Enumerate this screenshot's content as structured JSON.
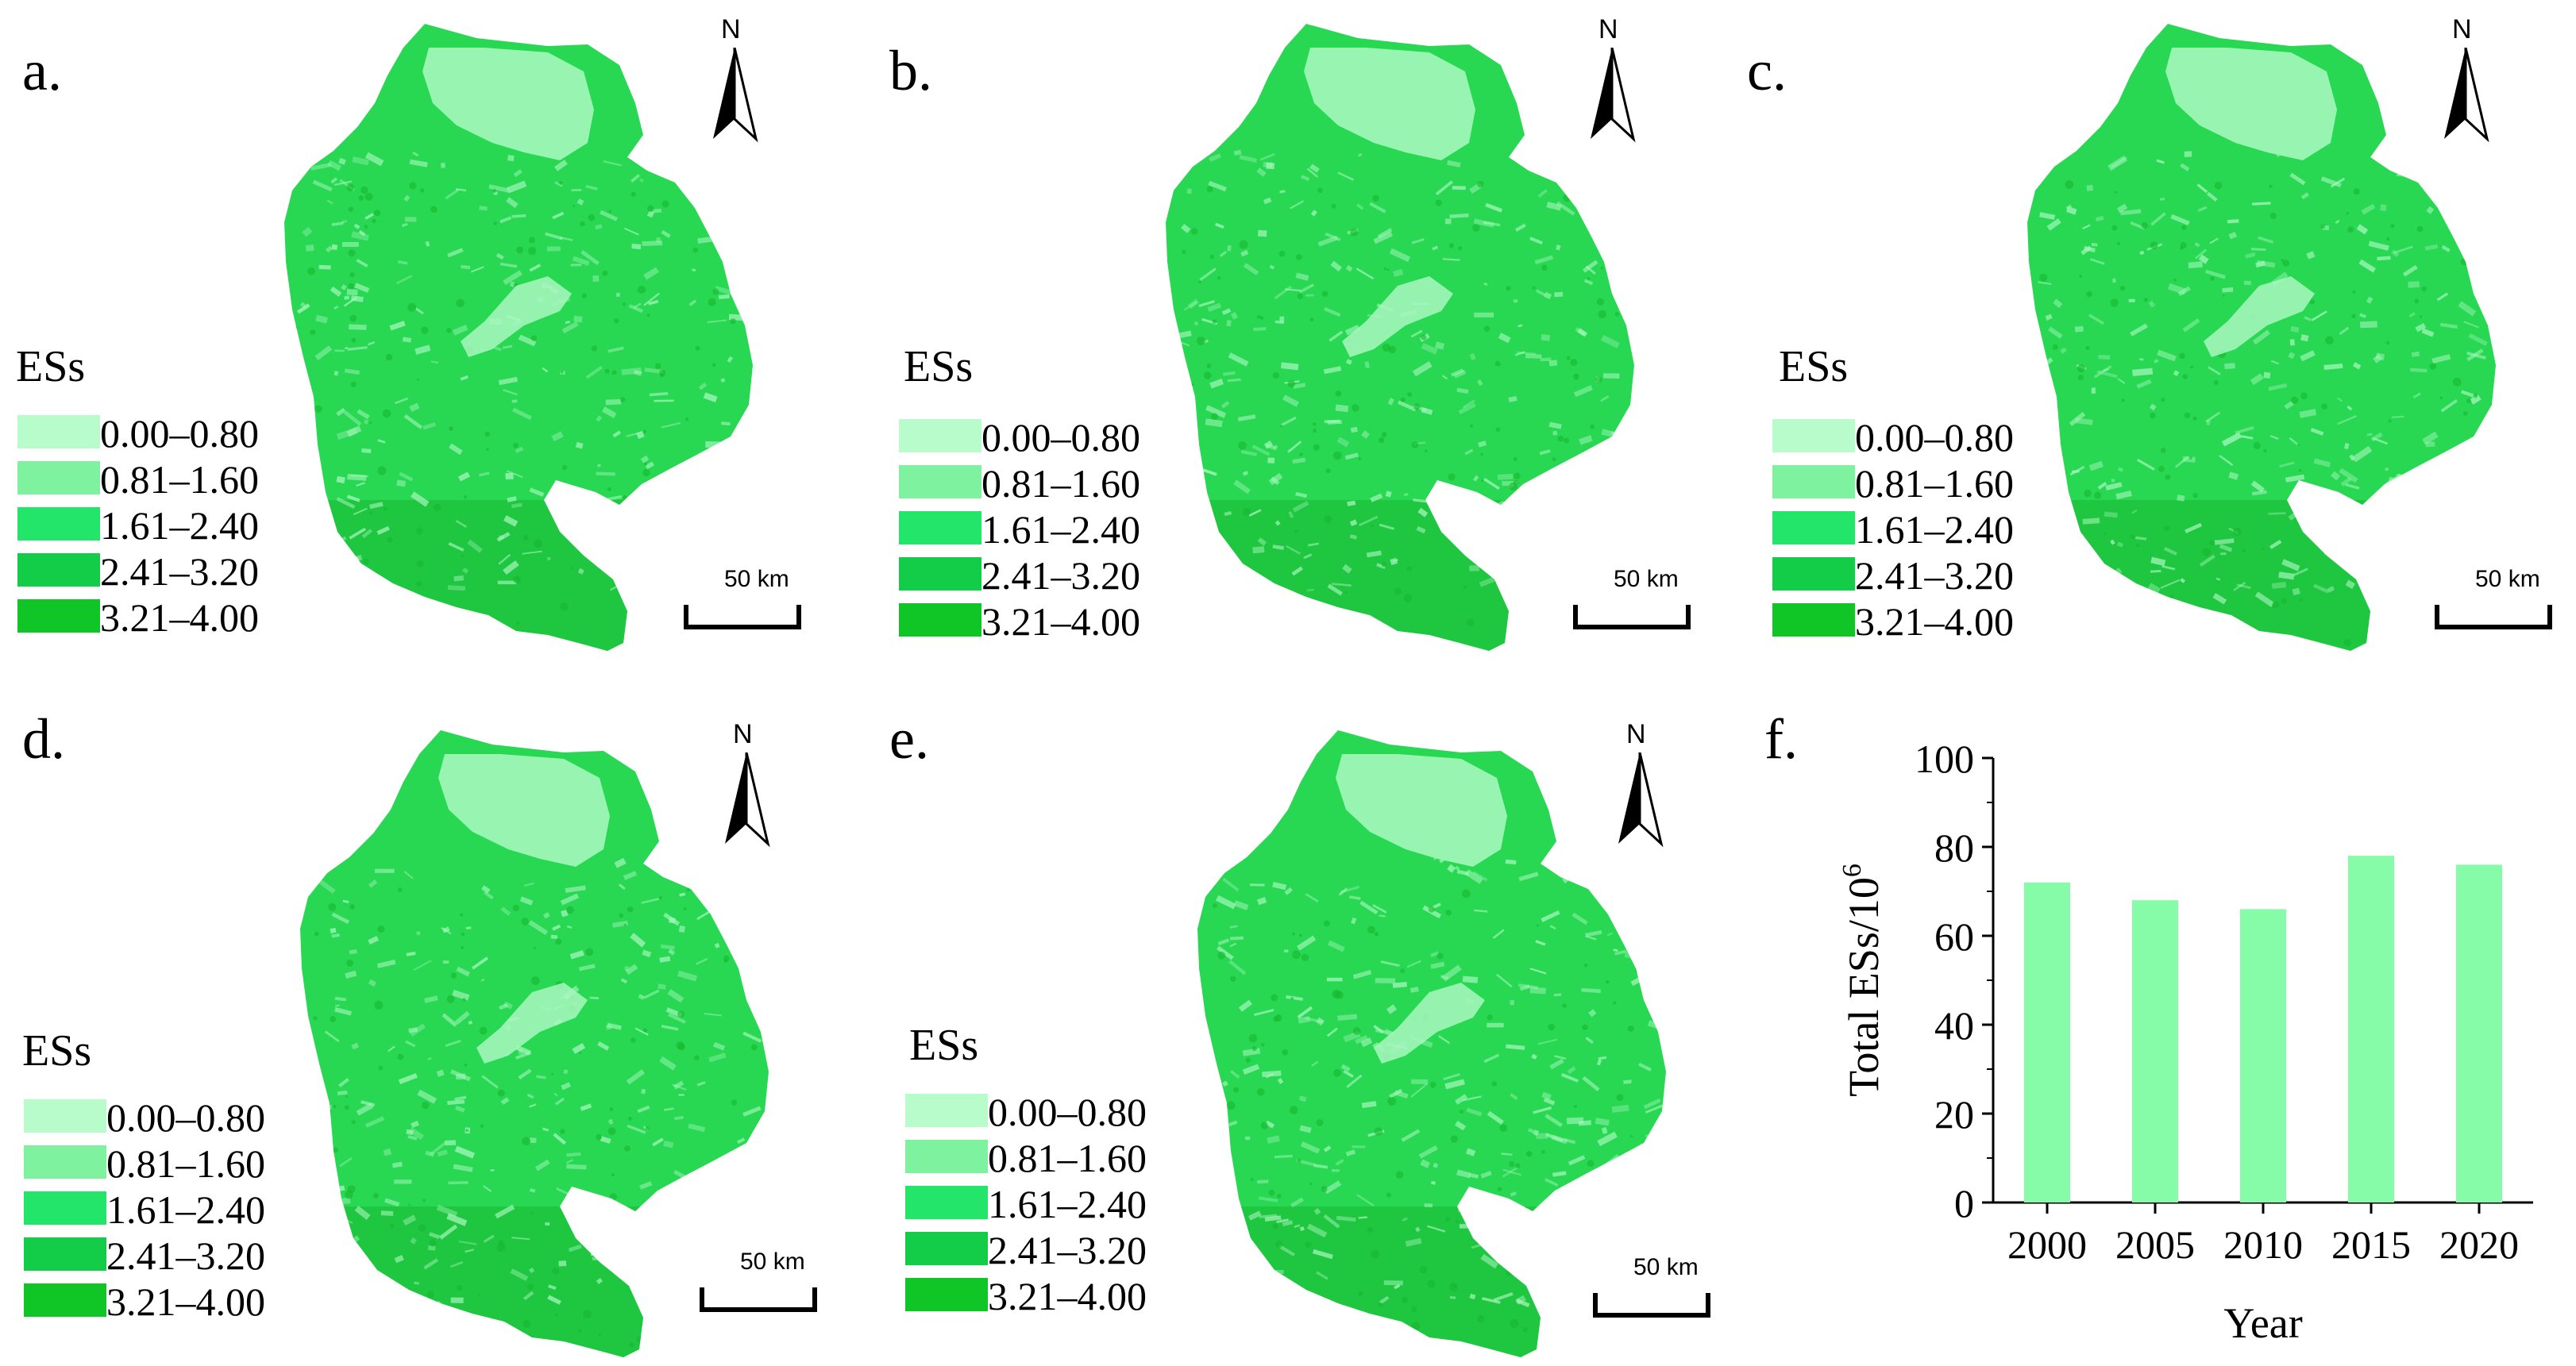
{
  "legend": {
    "title": "ESs",
    "classes": [
      {
        "label": "0.00–0.80",
        "color": "#b7fcca"
      },
      {
        "label": "0.81–1.60",
        "color": "#7ff2a0"
      },
      {
        "label": "1.61–2.40",
        "color": "#22e56a"
      },
      {
        "label": "2.41–3.20",
        "color": "#13cd48"
      },
      {
        "label": "3.21–4.00",
        "color": "#10c626"
      }
    ]
  },
  "north_label": "N",
  "scale_label": "50 km",
  "map_colors": {
    "base": "#28d852",
    "lake": "#98f5b1",
    "light": "#a9f7bf",
    "dark": "#17b82f"
  },
  "panels": [
    {
      "letter": "a."
    },
    {
      "letter": "b."
    },
    {
      "letter": "c."
    },
    {
      "letter": "d."
    },
    {
      "letter": "e."
    }
  ],
  "chart_panel_letter": "f.",
  "chart_data": {
    "type": "bar",
    "categories": [
      "2000",
      "2005",
      "2010",
      "2015",
      "2020"
    ],
    "values": [
      72,
      68,
      66,
      78,
      76
    ],
    "xlabel": "Year",
    "ylabel": "Total ESs/10",
    "ylabel_superscript": "6",
    "ylim": [
      0,
      100
    ],
    "yticks": [
      0,
      20,
      40,
      60,
      80,
      100
    ],
    "bar_color": "#86fca8",
    "grid": false
  }
}
